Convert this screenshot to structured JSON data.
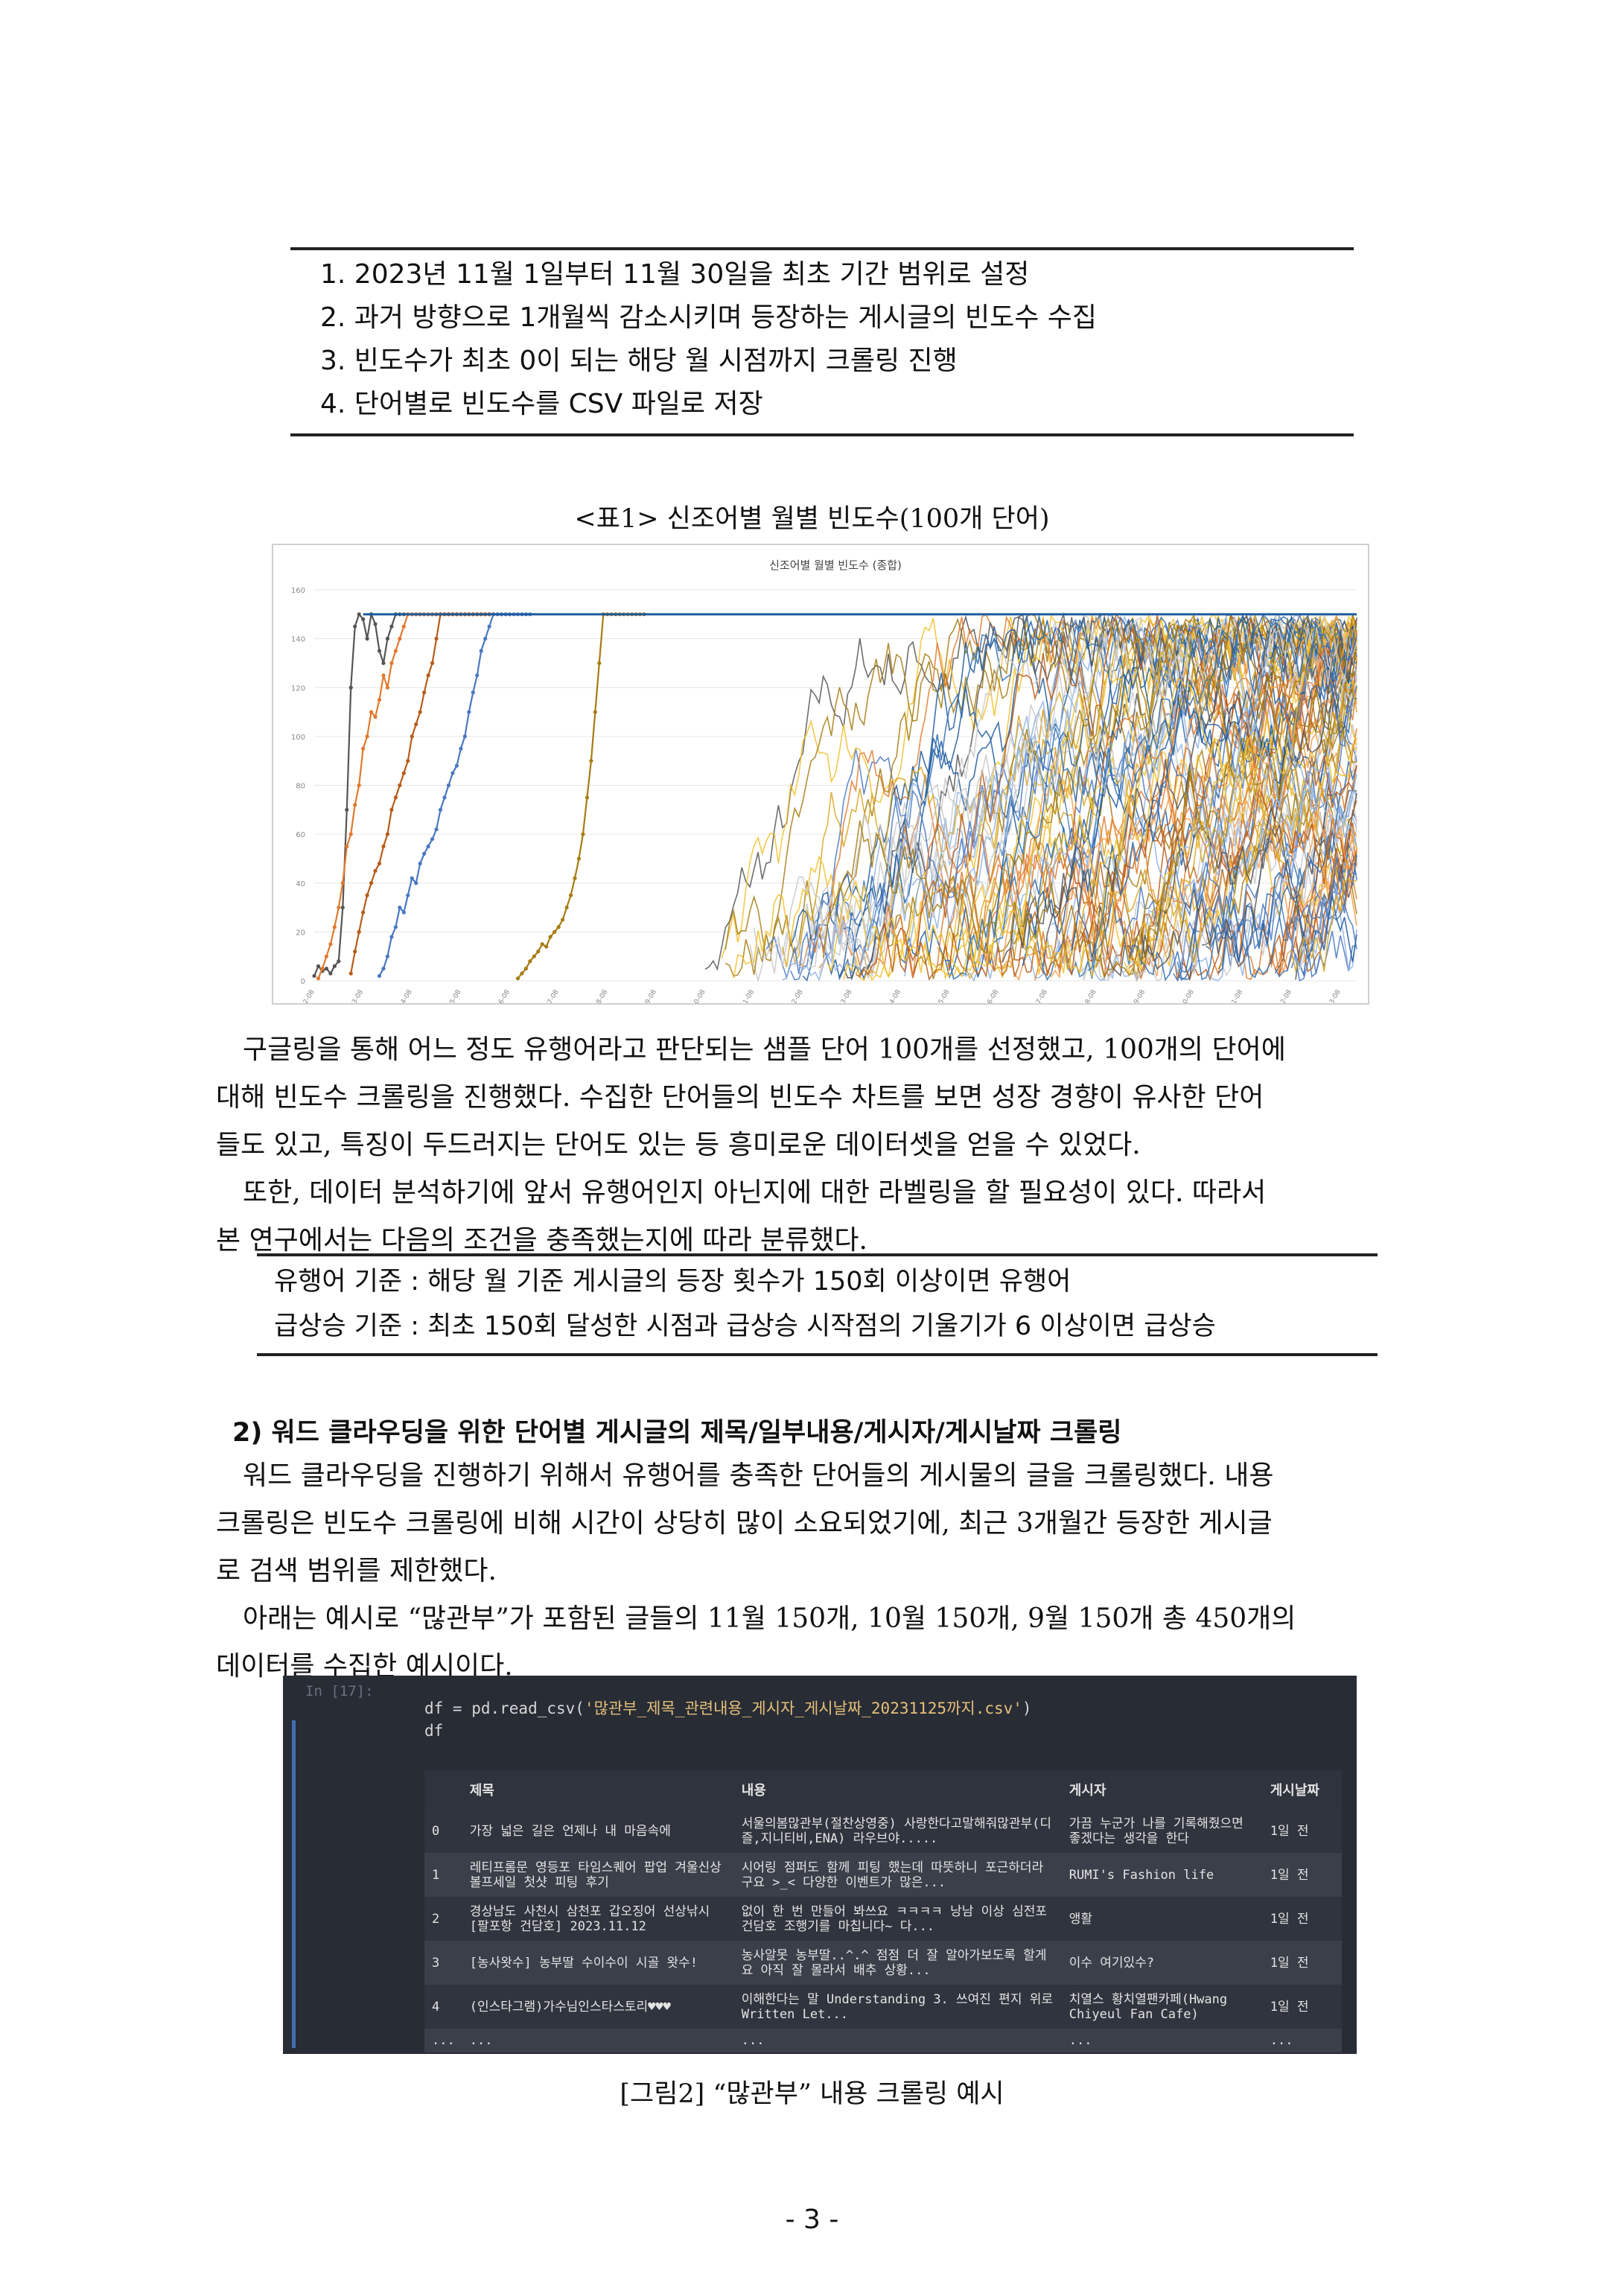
{
  "steps": [
    "1. 2023년 11월 1일부터 11월 30일을 최초 기간 범위로 설정",
    "2. 과거 방향으로 1개월씩 감소시키며 등장하는 게시글의 빈도수 수집",
    "3. 빈도수가 최초 0이 되는 해당 월 시점까지 크롤링 진행",
    "4. 단어별로 빈도수를 CSV 파일로 저장"
  ],
  "table_caption": "<표1> 신조어별 월별 빈도수(100개 단어)",
  "chart_data": {
    "type": "line",
    "title": "신조어별 월별 빈도수 (종합)",
    "xlabel": "",
    "ylabel": "",
    "ylim": [
      0,
      160
    ],
    "y_ticks": [
      0,
      20,
      40,
      60,
      80,
      100,
      120,
      140,
      160
    ],
    "x_ticks": [
      "2002-08",
      "2003-08",
      "2004-08",
      "2005-08",
      "2006-08",
      "2007-08",
      "2008-08",
      "2009-08",
      "2010-08",
      "2011-08",
      "2012-08",
      "2013-08",
      "2014-08",
      "2015-08",
      "2016-08",
      "2017-08",
      "2018-08",
      "2019-08",
      "2020-08",
      "2021-08",
      "2022-08",
      "2023-08"
    ],
    "series_count": 100,
    "max_value": 150,
    "grid": true,
    "colors": [
      "#555555",
      "#e07a2f",
      "#b85c1a",
      "#4a78c2",
      "#1f5a9e",
      "#f2c02e",
      "#d9a520",
      "#8fb3e3",
      "#c9c9c9",
      "#a67c12",
      "#2e6eb5",
      "#f39c4a"
    ],
    "series": [
      {
        "start": "2002-08",
        "values": [
          2,
          6,
          4,
          5,
          3,
          6,
          8,
          30,
          70,
          120,
          145,
          150,
          148,
          140,
          150,
          146,
          135,
          130,
          140,
          145,
          150,
          150,
          150,
          150,
          150,
          150,
          150,
          150,
          150,
          150,
          150,
          150,
          150,
          150,
          150,
          150,
          150,
          150,
          150,
          150,
          150,
          150,
          150,
          150
        ]
      },
      {
        "start": "2002-09",
        "values": [
          1,
          5,
          10,
          15,
          22,
          30,
          40,
          55,
          60,
          72,
          80,
          95,
          100,
          110,
          108,
          115,
          125,
          120,
          130,
          135,
          140,
          145,
          150,
          150,
          150,
          150,
          150,
          150,
          150,
          150,
          150,
          150,
          150,
          150,
          150,
          150,
          150,
          150,
          150,
          150,
          150,
          150,
          150,
          150
        ]
      },
      {
        "start": "2003-05",
        "values": [
          3,
          12,
          20,
          28,
          35,
          40,
          45,
          48,
          55,
          60,
          70,
          75,
          80,
          85,
          90,
          100,
          105,
          110,
          118,
          125,
          130,
          140,
          150,
          150,
          150,
          150,
          150,
          150,
          150,
          150,
          150,
          150,
          150,
          150,
          150,
          150,
          150,
          150,
          150,
          150
        ]
      },
      {
        "start": "2003-12",
        "values": [
          2,
          5,
          10,
          18,
          22,
          30,
          28,
          35,
          42,
          40,
          48,
          52,
          55,
          58,
          62,
          70,
          75,
          80,
          85,
          88,
          95,
          100,
          110,
          118,
          125,
          135,
          140,
          145,
          150,
          150,
          150,
          150,
          150,
          150,
          150,
          150,
          150,
          150
        ]
      },
      {
        "start": "2006-10",
        "values": [
          1,
          3,
          5,
          8,
          10,
          12,
          15,
          14,
          18,
          20,
          22,
          25,
          30,
          35,
          42,
          50,
          60,
          75,
          90,
          110,
          130,
          150,
          150,
          150,
          150,
          150,
          150,
          150,
          150,
          150,
          150,
          150
        ]
      }
    ]
  },
  "para1": [
    "구글링을 통해 어느 정도 유행어라고 판단되는 샘플 단어 100개를 선정했고, 100개의 단어에",
    "대해 빈도수 크롤링을 진행했다. 수집한 단어들의 빈도수 차트를 보면 성장 경향이 유사한 단어",
    "들도 있고, 특징이 두드러지는 단어도 있는 등 흥미로운 데이터셋을 얻을 수 있었다.",
    "또한, 데이터 분석하기에 앞서 유행어인지 아닌지에 대한 라벨링을 할 필요성이 있다. 따라서",
    "본 연구에서는 다음의 조건을 충족했는지에 따라 분류했다."
  ],
  "criteria": [
    "유행어 기준 : 해당 월 기준 게시글의 등장 횟수가 150회 이상이면 유행어",
    "급상승 기준 : 최초 150회 달성한 시점과 급상승 시작점의 기울기가 6 이상이면 급상승"
  ],
  "section_heading": "2) 워드 클라우딩을 위한 단어별 게시글의 제목/일부내용/게시자/게시날짜 크롤링",
  "para2": [
    "워드 클라우딩을 진행하기 위해서 유행어를 충족한 단어들의 게시물의 글을 크롤링했다. 내용",
    "크롤링은 빈도수 크롤링에 비해 시간이 상당히 많이 소요되었기에, 최근 3개월간 등장한 게시글",
    "로 검색 범위를 제한했다.",
    "아래는 예시로 “많관부”가 포함된 글들의 11월 150개, 10월 150개, 9월 150개 총 450개의",
    "데이터를 수집한 예시이다."
  ],
  "notebook": {
    "in_label": "In [17]:",
    "code_prefix": "df = pd.read_csv(",
    "code_string": "'많관부_제목_관련내용_게시자_게시날짜_20231125까지.csv'",
    "code_suffix": ")",
    "code_line2": "df",
    "columns": [
      "",
      "제목",
      "내용",
      "게시자",
      "게시날짜"
    ],
    "rows": [
      [
        "0",
        "가장 넓은 길은 언제나 내 마음속에",
        "서울의봄많관부(절찬상영중) 사랑한다고말해줘많관부(디즐,지니티비,ENA) 라우브야.....",
        "가끔 누군가 나를 기록해줬으면 좋겠다는 생각을 한다",
        "1일 전"
      ],
      [
        "1",
        "레티프롬문 영등포 타임스퀘어 팝업 겨울신상 볼프세일 첫샷 피팅 후기",
        "시어링 점퍼도 함께 피팅 했는데 따뜻하니 포근하더라구요 >_< 다양한 이벤트가 많은...",
        "RUMI's Fashion life",
        "1일 전"
      ],
      [
        "2",
        "경상남도 사천시 삼천포 갑오징어 선상낚시 [팔포항 건담호] 2023.11.12",
        "없이 한 번 만들어 봐쓰요 ㅋㅋㅋㅋ 낭남 이상 심전포 건담호 조행기를 마칩니다~ 다...",
        "앵활",
        "1일 전"
      ],
      [
        "3",
        "[농사왓수] 농부딸 수이수이 시골 왓수!",
        "농사알못 농부딸..^.^ 점점 더 잘 알아가보도록 할게요 아직 잘 몰라서 배추 상황...",
        "이수 여기있수?",
        "1일 전"
      ],
      [
        "4",
        "(인스타그램)가수님인스타스토리♥♥♥",
        "이해한다는 말 Understanding 3. 쓰여진 편지 위로 Written Let...",
        "치열스 황치열팬카페(Hwang Chiyeul Fan Cafe)",
        "1일 전"
      ],
      [
        "...",
        "...",
        "...",
        "...",
        "..."
      ]
    ]
  },
  "figure_caption": "[그림2] “많관부” 내용 크롤링 예시",
  "page_number": "- 3 -"
}
